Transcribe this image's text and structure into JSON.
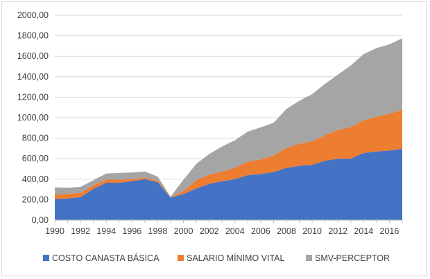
{
  "chart_data": {
    "type": "area",
    "stacked": true,
    "title": "",
    "xlabel": "",
    "ylabel": "",
    "x": [
      1990,
      1991,
      1992,
      1993,
      1994,
      1995,
      1996,
      1997,
      1998,
      1999,
      2000,
      2001,
      2002,
      2003,
      2004,
      2005,
      2006,
      2007,
      2008,
      2009,
      2010,
      2011,
      2012,
      2013,
      2014,
      2015,
      2016,
      2017
    ],
    "ylim": [
      0,
      2000
    ],
    "yticks": [
      "0,00",
      "200,00",
      "400,00",
      "600,00",
      "800,00",
      "1000,00",
      "1200,00",
      "1400,00",
      "1600,00",
      "1800,00",
      "2000,00"
    ],
    "xticks": [
      "1990",
      "1992",
      "1994",
      "1996",
      "1998",
      "2000",
      "2002",
      "2004",
      "2006",
      "2008",
      "2010",
      "2012",
      "2014",
      "2016"
    ],
    "series": [
      {
        "name": "COSTO CANASTA BÁSICA",
        "color": "#4472c4",
        "values": [
          205,
          212,
          225,
          305,
          365,
          365,
          380,
          400,
          370,
          220,
          255,
          310,
          355,
          380,
          400,
          440,
          450,
          470,
          510,
          530,
          540,
          580,
          600,
          600,
          655,
          670,
          680,
          695
        ]
      },
      {
        "name": "SALARIO MÍNIMO VITAL",
        "color": "#ed7d31",
        "values": [
          45,
          45,
          40,
          35,
          30,
          30,
          20,
          15,
          15,
          5,
          30,
          80,
          90,
          95,
          110,
          130,
          145,
          160,
          195,
          215,
          230,
          250,
          280,
          310,
          320,
          340,
          360,
          380
        ]
      },
      {
        "name": "SMV-PERCEPTOR",
        "color": "#a5a5a5",
        "values": [
          70,
          60,
          60,
          50,
          60,
          65,
          65,
          60,
          40,
          5,
          110,
          160,
          200,
          245,
          270,
          295,
          310,
          320,
          380,
          420,
          460,
          500,
          540,
          600,
          645,
          670,
          675,
          700
        ]
      }
    ],
    "legend_position": "bottom",
    "grid": true
  }
}
